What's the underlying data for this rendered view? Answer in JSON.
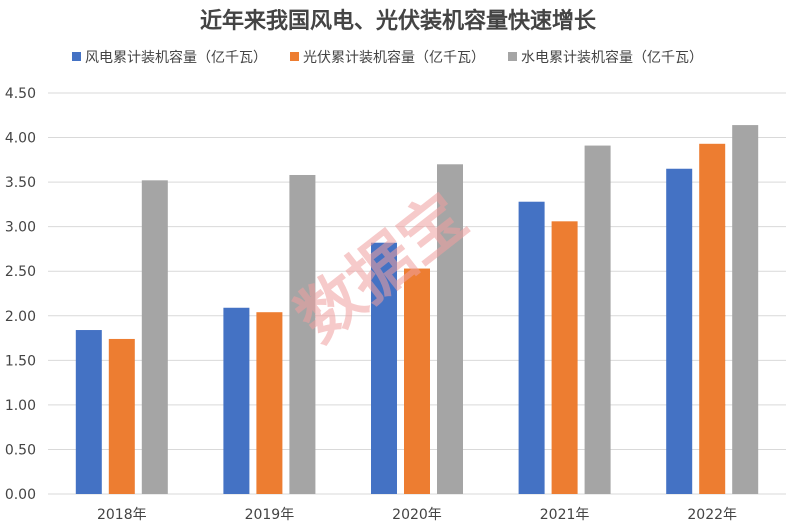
{
  "chart_data": {
    "type": "bar",
    "title": "近年来我国风电、光伏装机容量快速增长",
    "categories": [
      "2018年",
      "2019年",
      "2020年",
      "2021年",
      "2022年"
    ],
    "series": [
      {
        "name": "风电累计装机容量（亿千瓦）",
        "color": "#4472c4",
        "values": [
          1.84,
          2.09,
          2.82,
          3.28,
          3.65
        ]
      },
      {
        "name": "光伏累计装机容量（亿千瓦）",
        "color": "#ed7d31",
        "values": [
          1.74,
          2.04,
          2.53,
          3.06,
          3.93
        ]
      },
      {
        "name": "水电累计装机容量（亿千瓦）",
        "color": "#a5a5a5",
        "values": [
          3.52,
          3.58,
          3.7,
          3.91,
          4.14
        ]
      }
    ],
    "ylim": [
      0,
      4.5
    ],
    "yticks": [
      "0.00",
      "0.50",
      "1.00",
      "1.50",
      "2.00",
      "2.50",
      "3.00",
      "3.50",
      "4.00",
      "4.50"
    ],
    "grid": true,
    "legend_position": "top",
    "watermark": "数据宝"
  }
}
